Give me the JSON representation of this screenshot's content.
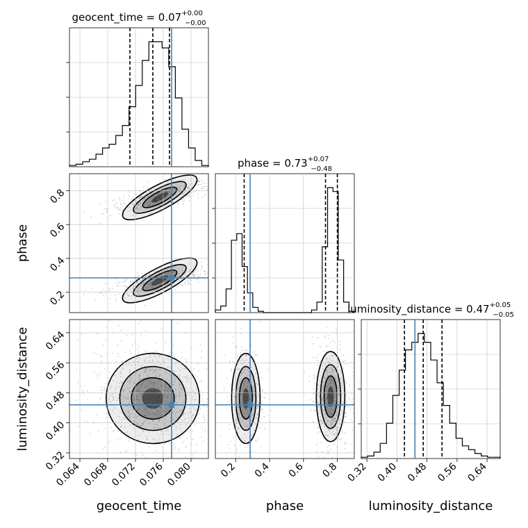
{
  "chart_data": {
    "type": "corner",
    "parameters": [
      "geocent_time",
      "phase",
      "luminosity_distance"
    ],
    "axis_labels": [
      "geocent_time",
      "phase",
      "luminosity_distance"
    ],
    "ranges": {
      "geocent_time": [
        0.0625,
        0.0825
      ],
      "phase": [
        0.08,
        0.9
      ],
      "luminosity_distance": [
        0.305,
        0.675
      ]
    },
    "ticks": {
      "geocent_time": [
        "0.064",
        "0.068",
        "0.072",
        "0.076",
        "0.080"
      ],
      "phase": [
        "0.2",
        "0.4",
        "0.6",
        "0.8"
      ],
      "luminosity_distance": [
        "0.32",
        "0.40",
        "0.48",
        "0.56",
        "0.64"
      ]
    },
    "titles": {
      "geocent_time": {
        "prefix": "geocent_time = 0.07",
        "plus": "+0.00",
        "minus": "−0.00"
      },
      "phase": {
        "prefix": "phase = 0.73",
        "plus": "+0.07",
        "minus": "−0.48"
      },
      "luminosity_distance": {
        "prefix": "luminosity_distance = 0.47",
        "plus": "+0.05",
        "minus": "−0.05"
      }
    },
    "quantiles": {
      "geocent_time": [
        0.0712,
        0.0745,
        0.0769
      ],
      "phase": [
        0.25,
        0.73,
        0.8
      ],
      "luminosity_distance": [
        0.42,
        0.47,
        0.52
      ]
    },
    "truths": {
      "geocent_time": 0.0772,
      "phase": 0.285,
      "luminosity_distance": 0.448
    },
    "histograms": {
      "geocent_time": [
        1,
        2,
        4,
        6,
        10,
        15,
        18,
        25,
        33,
        48,
        65,
        85,
        100,
        100,
        95,
        80,
        55,
        30,
        15,
        5,
        1
      ],
      "phase": [
        2,
        5,
        18,
        55,
        60,
        35,
        15,
        4,
        1,
        0,
        0,
        0,
        0,
        0,
        0,
        0,
        0,
        0,
        2,
        8,
        50,
        95,
        92,
        40,
        8,
        1
      ],
      "luminosity_distance": [
        1,
        2,
        5,
        12,
        28,
        50,
        70,
        86,
        92,
        99,
        92,
        78,
        60,
        42,
        28,
        16,
        10,
        7,
        4,
        2,
        1,
        1
      ]
    },
    "grid": true,
    "line_color": "#000000",
    "truth_color": "#4682b4",
    "point_color": "#999999"
  }
}
